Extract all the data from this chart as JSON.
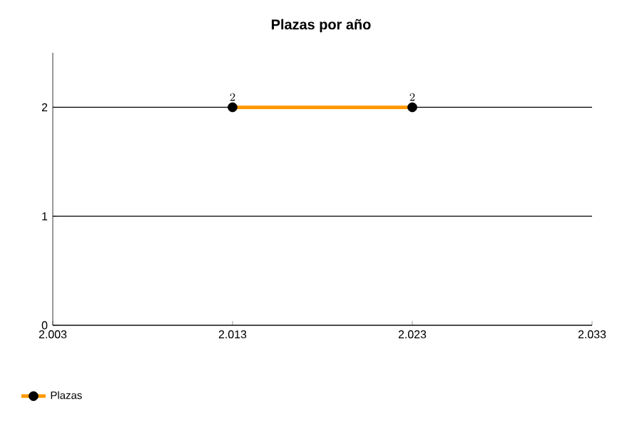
{
  "chart_data": {
    "type": "line",
    "title": "Plazas por año",
    "x": [
      2013,
      2023
    ],
    "series": [
      {
        "name": "Plazas",
        "color": "#ff9900",
        "values": [
          2,
          2
        ]
      }
    ],
    "xlim": [
      2003,
      2033
    ],
    "xticks": [
      {
        "value": 2003,
        "label": "2.003"
      },
      {
        "value": 2013,
        "label": "2.013"
      },
      {
        "value": 2023,
        "label": "2.023"
      },
      {
        "value": 2033,
        "label": "2.033"
      }
    ],
    "ylim": [
      0,
      2.5
    ],
    "yticks": [
      0,
      1,
      2
    ],
    "grid": "y",
    "legend": "bottom left",
    "marker": "circle",
    "line_style": "solid",
    "data_labels": true
  }
}
